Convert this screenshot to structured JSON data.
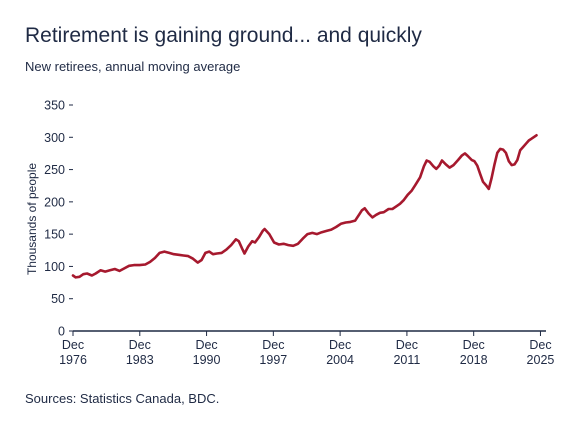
{
  "title": "Retirement is gaining ground... and quickly",
  "subtitle": "New retirees, annual moving average",
  "source": "Sources: Statistics Canada, BDC.",
  "colors": {
    "line": "#a6192e",
    "axis": "#1f2a44",
    "text": "#1f2a44"
  },
  "chart_data": {
    "type": "line",
    "title": "Retirement is gaining ground... and quickly",
    "subtitle": "New retirees, annual moving average",
    "ylabel": "Thousands of people",
    "xlabel": "",
    "ylim": [
      0,
      350
    ],
    "yticks": [
      0,
      50,
      100,
      150,
      200,
      250,
      300,
      350
    ],
    "xlim": [
      1976.92,
      2026.5
    ],
    "xticks": [
      {
        "x": 1976.92,
        "line1": "Dec",
        "line2": "1976"
      },
      {
        "x": 1983.92,
        "line1": "Dec",
        "line2": "1983"
      },
      {
        "x": 1990.92,
        "line1": "Dec",
        "line2": "1990"
      },
      {
        "x": 1997.92,
        "line1": "Dec",
        "line2": "1997"
      },
      {
        "x": 2004.92,
        "line1": "Dec",
        "line2": "2004"
      },
      {
        "x": 2011.92,
        "line1": "Dec",
        "line2": "2011"
      },
      {
        "x": 2018.92,
        "line1": "Dec",
        "line2": "2018"
      },
      {
        "x": 2025.92,
        "line1": "Dec",
        "line2": "2025"
      }
    ],
    "grid": false,
    "series": [
      {
        "points": [
          [
            1976.92,
            86
          ],
          [
            1977.2,
            83
          ],
          [
            1977.6,
            84
          ],
          [
            1978.0,
            88
          ],
          [
            1978.4,
            89
          ],
          [
            1978.9,
            86
          ],
          [
            1979.3,
            89
          ],
          [
            1979.8,
            94
          ],
          [
            1980.3,
            92
          ],
          [
            1980.8,
            94
          ],
          [
            1981.3,
            96
          ],
          [
            1981.8,
            93
          ],
          [
            1982.3,
            97
          ],
          [
            1982.8,
            101
          ],
          [
            1983.3,
            102
          ],
          [
            1983.9,
            102
          ],
          [
            1984.5,
            103
          ],
          [
            1985.0,
            107
          ],
          [
            1985.5,
            113
          ],
          [
            1986.0,
            121
          ],
          [
            1986.5,
            123
          ],
          [
            1987.0,
            121
          ],
          [
            1987.5,
            119
          ],
          [
            1988.0,
            118
          ],
          [
            1988.5,
            117
          ],
          [
            1989.0,
            116
          ],
          [
            1989.5,
            112
          ],
          [
            1990.0,
            106
          ],
          [
            1990.4,
            110
          ],
          [
            1990.8,
            121
          ],
          [
            1991.2,
            123
          ],
          [
            1991.6,
            119
          ],
          [
            1992.0,
            120
          ],
          [
            1992.5,
            121
          ],
          [
            1993.0,
            126
          ],
          [
            1993.5,
            133
          ],
          [
            1994.0,
            142
          ],
          [
            1994.3,
            139
          ],
          [
            1994.7,
            126
          ],
          [
            1994.9,
            120
          ],
          [
            1995.3,
            131
          ],
          [
            1995.7,
            139
          ],
          [
            1996.0,
            137
          ],
          [
            1996.4,
            145
          ],
          [
            1996.8,
            155
          ],
          [
            1997.0,
            158
          ],
          [
            1997.5,
            150
          ],
          [
            1998.0,
            137
          ],
          [
            1998.5,
            134
          ],
          [
            1999.0,
            135
          ],
          [
            1999.5,
            133
          ],
          [
            2000.0,
            132
          ],
          [
            2000.5,
            135
          ],
          [
            2001.0,
            143
          ],
          [
            2001.5,
            150
          ],
          [
            2002.0,
            152
          ],
          [
            2002.5,
            150
          ],
          [
            2003.0,
            153
          ],
          [
            2003.5,
            155
          ],
          [
            2004.0,
            157
          ],
          [
            2004.5,
            161
          ],
          [
            2005.0,
            166
          ],
          [
            2005.5,
            168
          ],
          [
            2006.0,
            169
          ],
          [
            2006.5,
            171
          ],
          [
            2006.9,
            180
          ],
          [
            2007.2,
            187
          ],
          [
            2007.5,
            190
          ],
          [
            2007.9,
            182
          ],
          [
            2008.3,
            176
          ],
          [
            2008.7,
            180
          ],
          [
            2009.1,
            183
          ],
          [
            2009.5,
            184
          ],
          [
            2010.0,
            189
          ],
          [
            2010.4,
            189
          ],
          [
            2010.8,
            193
          ],
          [
            2011.2,
            197
          ],
          [
            2011.6,
            203
          ],
          [
            2012.0,
            211
          ],
          [
            2012.4,
            217
          ],
          [
            2012.8,
            226
          ],
          [
            2013.3,
            238
          ],
          [
            2013.7,
            255
          ],
          [
            2014.0,
            264
          ],
          [
            2014.3,
            262
          ],
          [
            2014.7,
            255
          ],
          [
            2015.0,
            251
          ],
          [
            2015.3,
            256
          ],
          [
            2015.6,
            264
          ],
          [
            2016.0,
            258
          ],
          [
            2016.4,
            253
          ],
          [
            2016.8,
            257
          ],
          [
            2017.3,
            265
          ],
          [
            2017.7,
            272
          ],
          [
            2018.0,
            275
          ],
          [
            2018.3,
            271
          ],
          [
            2018.7,
            265
          ],
          [
            2019.0,
            263
          ],
          [
            2019.3,
            256
          ],
          [
            2019.6,
            243
          ],
          [
            2019.9,
            231
          ],
          [
            2020.2,
            226
          ],
          [
            2020.5,
            220
          ],
          [
            2020.8,
            237
          ],
          [
            2021.1,
            258
          ],
          [
            2021.4,
            276
          ],
          [
            2021.7,
            282
          ],
          [
            2022.0,
            281
          ],
          [
            2022.3,
            276
          ],
          [
            2022.6,
            263
          ],
          [
            2022.9,
            257
          ],
          [
            2023.2,
            258
          ],
          [
            2023.5,
            265
          ],
          [
            2023.8,
            280
          ],
          [
            2024.1,
            285
          ],
          [
            2024.4,
            290
          ],
          [
            2024.7,
            295
          ],
          [
            2025.0,
            298
          ],
          [
            2025.5,
            303
          ]
        ]
      }
    ]
  }
}
